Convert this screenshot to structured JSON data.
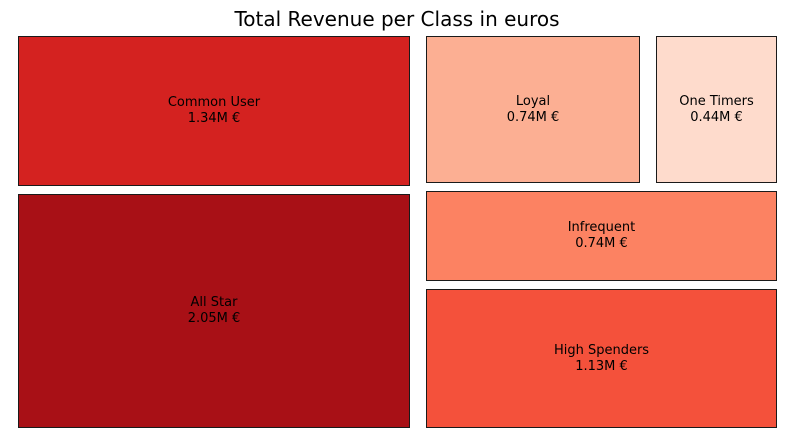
{
  "chart_data": {
    "type": "treemap",
    "title": "Total Revenue per Class in euros",
    "unit": "M €",
    "tiles": [
      {
        "name": "Common User",
        "value": 1.34,
        "label": "1.34M €",
        "color": "#d42220"
      },
      {
        "name": "All Star",
        "value": 2.05,
        "label": "2.05M €",
        "color": "#a81016"
      },
      {
        "name": "Loyal",
        "value": 0.74,
        "label": "0.74M €",
        "color": "#fcaf93"
      },
      {
        "name": "One Timers",
        "value": 0.44,
        "label": "0.44M €",
        "color": "#fedbcc"
      },
      {
        "name": "Infrequent",
        "value": 0.74,
        "label": "0.74M €",
        "color": "#fc8262"
      },
      {
        "name": "High Spenders",
        "value": 1.13,
        "label": "1.13M €",
        "color": "#f4513b"
      }
    ]
  }
}
